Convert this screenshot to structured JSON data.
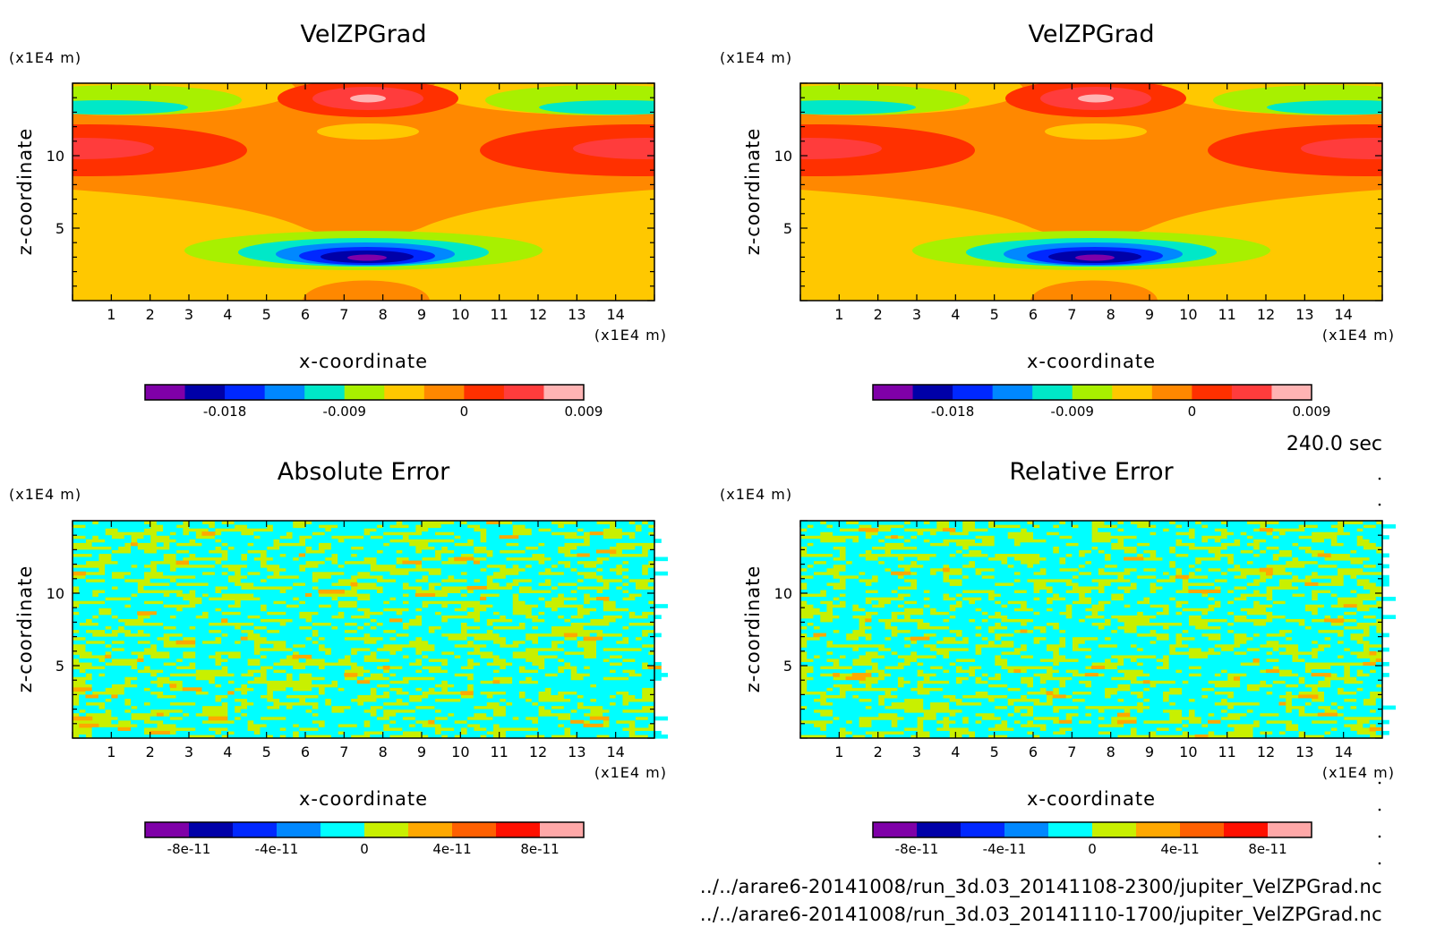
{
  "chart_data": [
    {
      "type": "heatmap",
      "title": "VelZPGrad",
      "xlabel": "x-coordinate",
      "ylabel": "z-coordinate",
      "x_unit": "(x1E4 m)",
      "y_unit": "(x1E4 m)",
      "xlim": [
        0,
        15
      ],
      "ylim": [
        0,
        15
      ],
      "x_ticks": [
        1,
        2,
        3,
        4,
        5,
        6,
        7,
        8,
        9,
        10,
        11,
        12,
        13,
        14
      ],
      "y_ticks": [
        5,
        10
      ],
      "pattern": "field",
      "colorbar": {
        "levels": 11,
        "colors": [
          "#7f00a8",
          "#0000a8",
          "#0028ff",
          "#0088ff",
          "#00e8c8",
          "#a8f000",
          "#ffc800",
          "#ff8800",
          "#ff3000",
          "#ff3c3c",
          "#ffb4b4"
        ],
        "tick_labels": [
          "-0.018",
          "-0.009",
          "0",
          "0.009"
        ],
        "tick_positions": [
          2,
          5,
          8,
          11
        ]
      }
    },
    {
      "type": "heatmap",
      "title": "VelZPGrad",
      "xlabel": "x-coordinate",
      "ylabel": "z-coordinate",
      "x_unit": "(x1E4 m)",
      "y_unit": "(x1E4 m)",
      "xlim": [
        0,
        15
      ],
      "ylim": [
        0,
        15
      ],
      "x_ticks": [
        1,
        2,
        3,
        4,
        5,
        6,
        7,
        8,
        9,
        10,
        11,
        12,
        13,
        14
      ],
      "y_ticks": [
        5,
        10
      ],
      "pattern": "field",
      "colorbar": {
        "levels": 11,
        "colors": [
          "#7f00a8",
          "#0000a8",
          "#0028ff",
          "#0088ff",
          "#00e8c8",
          "#a8f000",
          "#ffc800",
          "#ff8800",
          "#ff3000",
          "#ff3c3c",
          "#ffb4b4"
        ],
        "tick_labels": [
          "-0.018",
          "-0.009",
          "0",
          "0.009"
        ],
        "tick_positions": [
          2,
          5,
          8,
          11
        ]
      }
    },
    {
      "type": "heatmap",
      "title": "Absolute Error",
      "xlabel": "x-coordinate",
      "ylabel": "z-coordinate",
      "x_unit": "(x1E4 m)",
      "y_unit": "(x1E4 m)",
      "xlim": [
        0,
        15
      ],
      "ylim": [
        0,
        15
      ],
      "x_ticks": [
        1,
        2,
        3,
        4,
        5,
        6,
        7,
        8,
        9,
        10,
        11,
        12,
        13,
        14
      ],
      "y_ticks": [
        5,
        10
      ],
      "pattern": "noise",
      "colorbar": {
        "levels": 10,
        "colors": [
          "#7f00a8",
          "#0000a8",
          "#0028ff",
          "#0088ff",
          "#00ffff",
          "#c8f000",
          "#ffa800",
          "#ff6000",
          "#ff1000",
          "#ffa8a8"
        ],
        "tick_labels": [
          "-8e-11",
          "-4e-11",
          "0",
          "4e-11",
          "8e-11"
        ],
        "tick_positions": [
          1,
          3,
          5,
          7,
          9
        ]
      }
    },
    {
      "type": "heatmap",
      "title": "Relative Error",
      "xlabel": "x-coordinate",
      "ylabel": "z-coordinate",
      "x_unit": "(x1E4 m)",
      "y_unit": "(x1E4 m)",
      "xlim": [
        0,
        15
      ],
      "ylim": [
        0,
        15
      ],
      "x_ticks": [
        1,
        2,
        3,
        4,
        5,
        6,
        7,
        8,
        9,
        10,
        11,
        12,
        13,
        14
      ],
      "y_ticks": [
        5,
        10
      ],
      "pattern": "noise",
      "colorbar": {
        "levels": 10,
        "colors": [
          "#7f00a8",
          "#0000a8",
          "#0028ff",
          "#0088ff",
          "#00ffff",
          "#c8f000",
          "#ffa800",
          "#ff6000",
          "#ff1000",
          "#ffa8a8"
        ],
        "tick_labels": [
          "-8e-11",
          "-4e-11",
          "0",
          "4e-11",
          "8e-11"
        ],
        "tick_positions": [
          1,
          3,
          5,
          7,
          9
        ]
      }
    }
  ],
  "time_label": "240.0 sec",
  "footer": {
    "line1": "../../arare6-20141008/run_3d.03_20141108-2300/jupiter_VelZPGrad.nc",
    "line2": "../../arare6-20141008/run_3d.03_20141110-1700/jupiter_VelZPGrad.nc"
  }
}
